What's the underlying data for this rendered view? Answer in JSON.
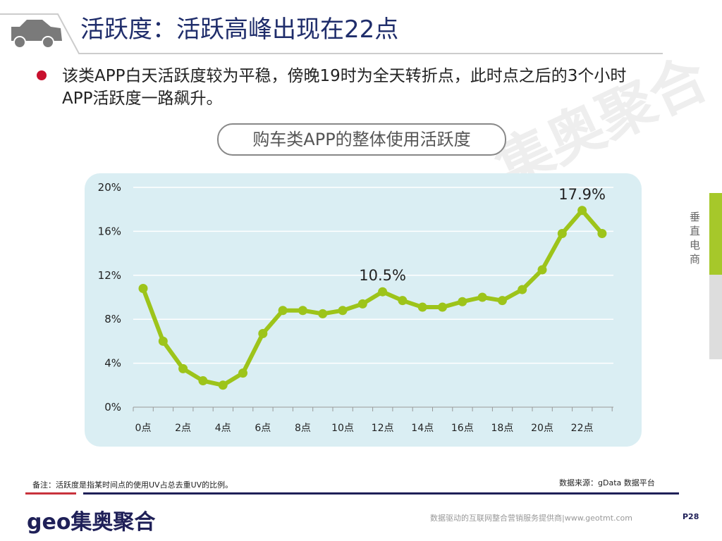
{
  "header": {
    "title": "活跃度：活跃高峰出现在22点",
    "icon": "car-icon"
  },
  "description": "该类APP白天活跃度较为平稳，傍晚19时为全天转折点，此时点之后的3个小时APP活跃度一路飙升。",
  "watermark": "集奥聚合",
  "side_label": "垂直电商",
  "chart_data": {
    "type": "line",
    "title": "购车类APP的整体使用活跃度",
    "categories": [
      "0点",
      "1点",
      "2点",
      "3点",
      "4点",
      "5点",
      "6点",
      "7点",
      "8点",
      "9点",
      "10点",
      "11点",
      "12点",
      "13点",
      "14点",
      "15点",
      "16点",
      "17点",
      "18点",
      "19点",
      "20点",
      "21点",
      "22点",
      "23点"
    ],
    "tick_labels": [
      "0点",
      "2点",
      "4点",
      "6点",
      "8点",
      "10点",
      "12点",
      "14点",
      "16点",
      "18点",
      "20点",
      "22点"
    ],
    "values": [
      10.8,
      6.0,
      3.5,
      2.4,
      2.0,
      3.1,
      6.7,
      8.8,
      8.8,
      8.5,
      8.8,
      9.4,
      10.5,
      9.7,
      9.1,
      9.1,
      9.6,
      10.0,
      9.7,
      10.7,
      12.5,
      15.8,
      17.9,
      15.8
    ],
    "ylim": [
      0,
      20
    ],
    "yticks": [
      "0%",
      "4%",
      "8%",
      "12%",
      "16%",
      "20%"
    ],
    "annotations": [
      {
        "index": 12,
        "label": "10.5%"
      },
      {
        "index": 22,
        "label": "17.9%"
      }
    ],
    "grid": true,
    "line_color": "#9dc41a",
    "background": "#daeef3"
  },
  "footer": {
    "note": "备注：活跃度是指某时间点的使用UV占总去重UV的比例。",
    "source": "数据来源：gData  数据平台",
    "logo": "geo集奥聚合",
    "tagline": "数据驱动的互联网整合营销服务提供商|www.geotmt.com",
    "page": "P28"
  }
}
